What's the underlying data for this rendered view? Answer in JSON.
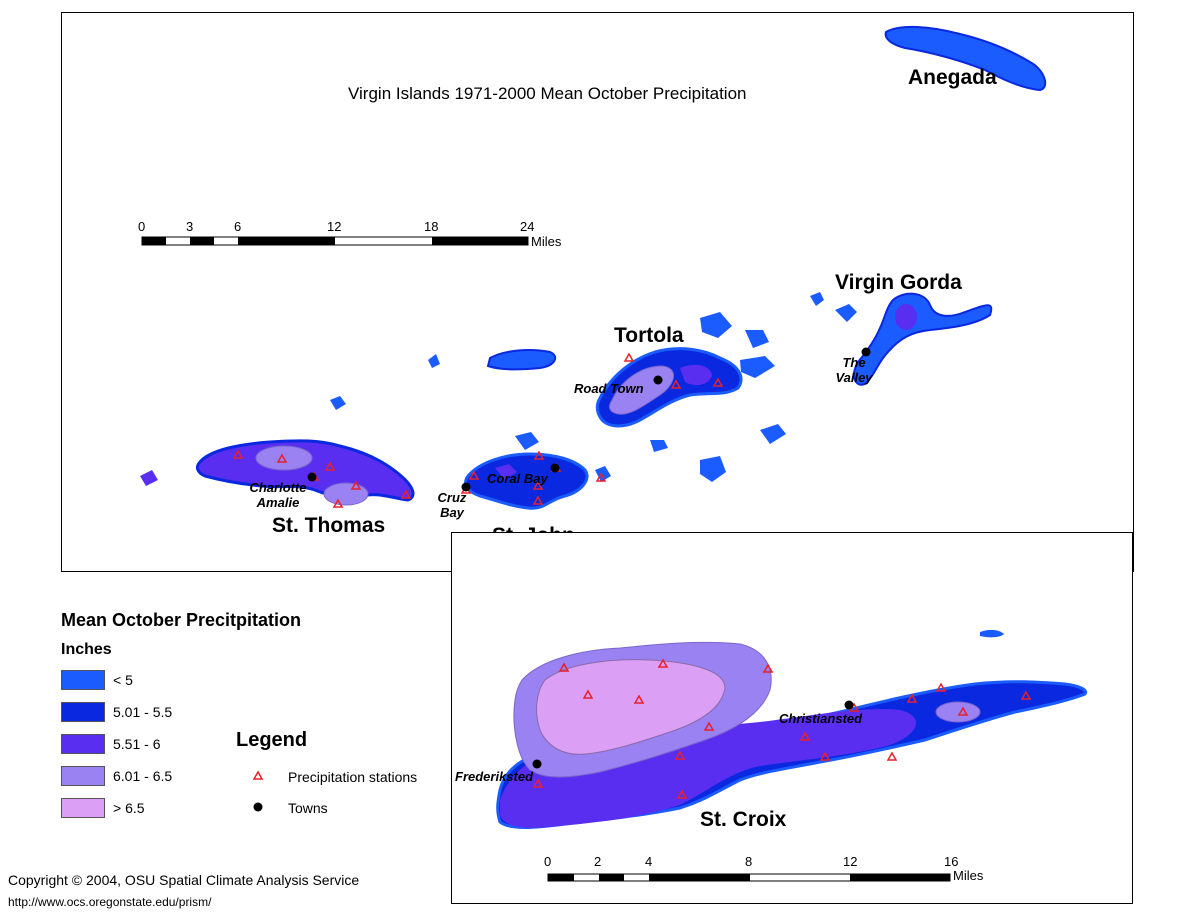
{
  "main_map": {
    "title": "Virgin Islands 1971-2000 Mean October Precipitation",
    "islands": {
      "anegada": "Anegada",
      "virgin_gorda": "Virgin Gorda",
      "tortola": "Tortola",
      "st_thomas": "St. Thomas",
      "st_john": "St. John"
    },
    "towns": {
      "road_town": "Road Town",
      "the_valley_1": "The",
      "the_valley_2": "Valley",
      "charlotte_amalie_1": "Charlotte",
      "charlotte_amalie_2": "Amalie",
      "cruz_bay_1": "Cruz",
      "cruz_bay_2": "Bay",
      "coral_bay": "Coral Bay"
    },
    "scale": {
      "ticks": [
        "0",
        "3",
        "6",
        "12",
        "18",
        "24"
      ],
      "unit": "Miles"
    }
  },
  "inset_map": {
    "island": "St. Croix",
    "towns": {
      "christiansted": "Christiansted",
      "frederiksted": "Frederiksted"
    },
    "scale": {
      "ticks": [
        "0",
        "2",
        "4",
        "8",
        "12",
        "16"
      ],
      "unit": "Miles"
    }
  },
  "precip_legend": {
    "title": "Mean October Precitpitation",
    "subtitle": "Inches",
    "classes": [
      {
        "label": "< 5",
        "color": "#1a5cff"
      },
      {
        "label": "5.01 - 5.5",
        "color": "#0a28e0"
      },
      {
        "label": "5.51 - 6",
        "color": "#5a2ef0"
      },
      {
        "label": "6.01 - 6.5",
        "color": "#9a82f2"
      },
      {
        "label": "> 6.5",
        "color": "#dc9ff6"
      }
    ]
  },
  "symbol_legend": {
    "title": "Legend",
    "stations": "Precipitation stations",
    "towns": "Towns"
  },
  "credits": {
    "copyright": "Copyright © 2004, OSU Spatial Climate Analysis Service",
    "url": "http://www.ocs.oregonstate.edu/prism/"
  },
  "colors": {
    "station": "#e8202a",
    "town": "#000000"
  }
}
